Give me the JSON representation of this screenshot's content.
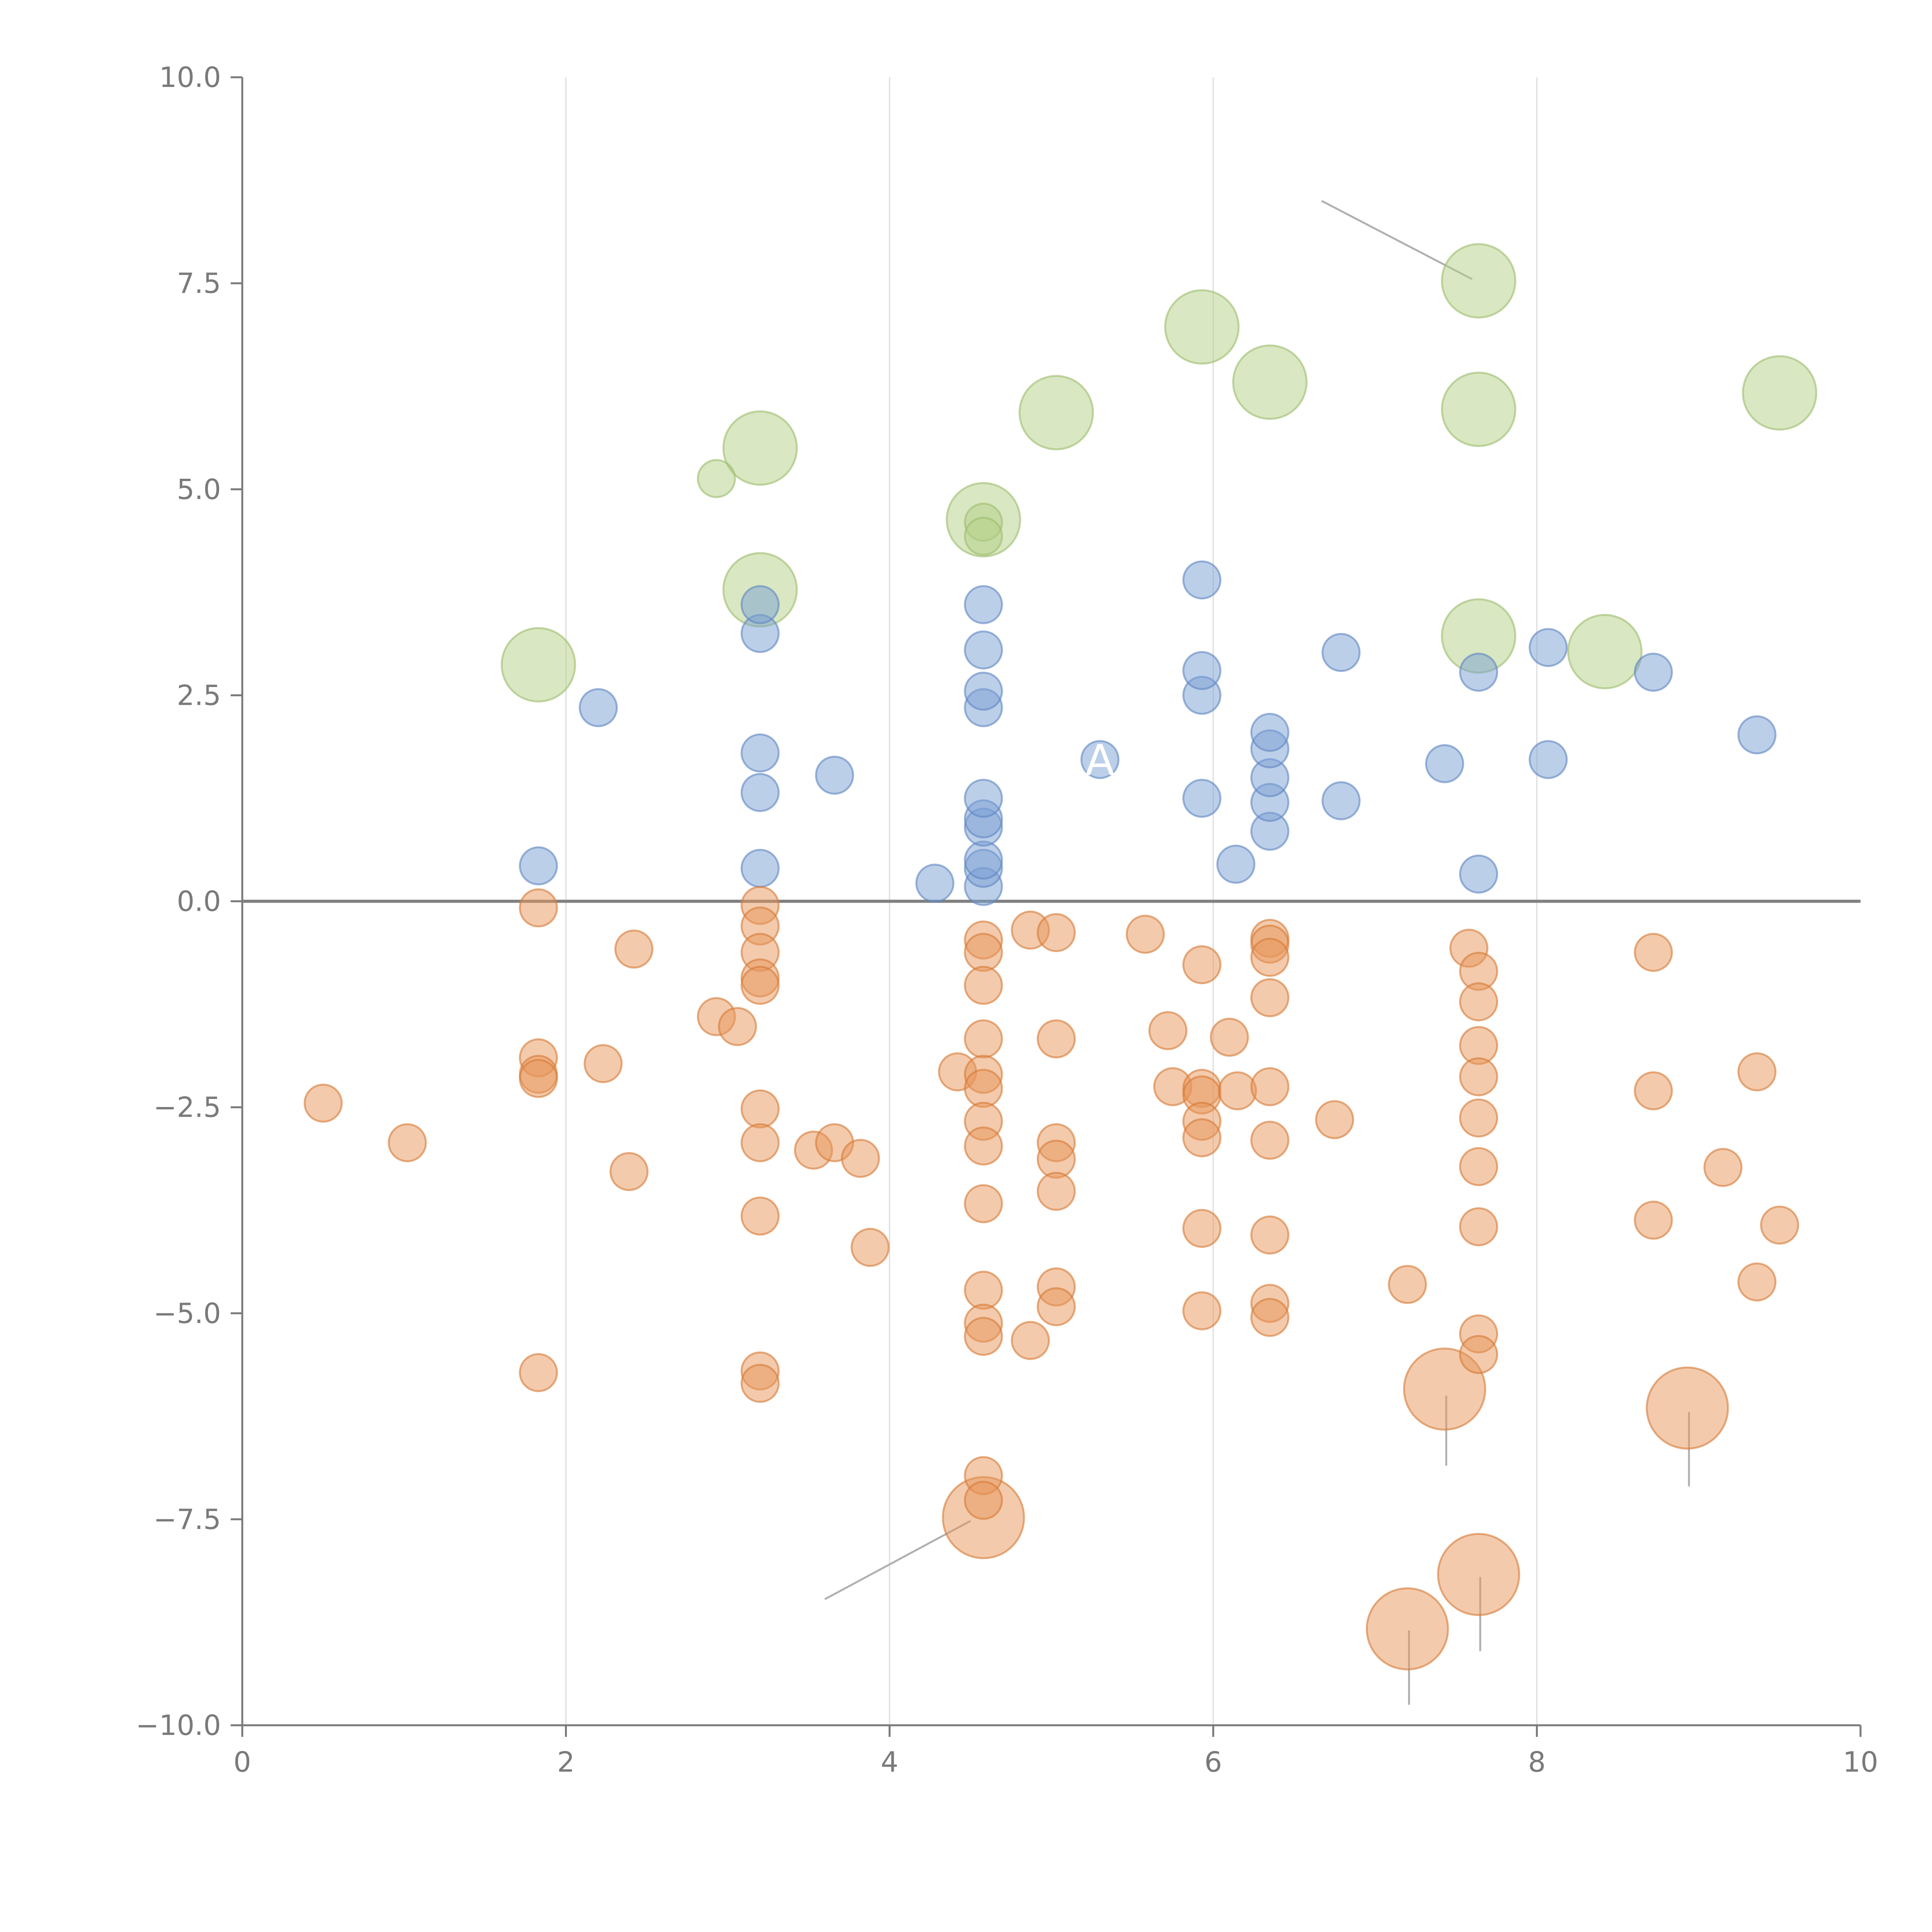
{
  "chart_data": {
    "type": "scatter",
    "subtype": "bubble",
    "title": "",
    "xlabel": "",
    "ylabel": "",
    "xlim": [
      0,
      10
    ],
    "ylim": [
      -10,
      10
    ],
    "x_ticks": [
      0,
      2,
      4,
      6,
      8,
      10
    ],
    "x_tick_labels": [
      "0",
      "2",
      "4",
      "6",
      "8",
      "10"
    ],
    "y_ticks": [
      -10,
      -7.5,
      -5,
      -2.5,
      0,
      2.5,
      5,
      7.5,
      10
    ],
    "y_tick_labels": [
      "−10.0",
      "−7.5",
      "−5.0",
      "−2.5",
      "0.0",
      "2.5",
      "5.0",
      "7.5",
      "10.0"
    ],
    "vertical_grid_at": [
      2,
      4,
      6,
      8
    ],
    "reference_line_y": 0,
    "colors": {
      "blue_fill": "#7a9fd4",
      "blue_stroke": "#5f86c2",
      "orange_fill": "#e8965a",
      "orange_stroke": "#d67a36",
      "green_fill": "#b3cf86",
      "green_stroke": "#9dbd6c",
      "grid": "#dcdcdc",
      "axis": "#7a7a7a",
      "zero_line": "#808080",
      "leader": "#b0b0b0"
    },
    "series": [
      {
        "name": "blue",
        "color": "blue",
        "points": [
          [
            1.83,
            0.43
          ],
          [
            2.2,
            2.35
          ],
          [
            3.2,
            0.4
          ],
          [
            3.2,
            1.32
          ],
          [
            3.2,
            1.8
          ],
          [
            3.2,
            3.25
          ],
          [
            3.2,
            3.6
          ],
          [
            3.66,
            1.53
          ],
          [
            4.28,
            0.22
          ],
          [
            4.58,
            0.18
          ],
          [
            4.58,
            0.4
          ],
          [
            4.58,
            0.5
          ],
          [
            4.58,
            0.9
          ],
          [
            4.58,
            1.0
          ],
          [
            4.58,
            1.25
          ],
          [
            4.58,
            2.35
          ],
          [
            4.58,
            2.55
          ],
          [
            4.58,
            3.05
          ],
          [
            4.58,
            3.6
          ],
          [
            5.3,
            1.72
          ],
          [
            5.93,
            1.25
          ],
          [
            5.93,
            2.5
          ],
          [
            5.93,
            2.8
          ],
          [
            5.93,
            3.9
          ],
          [
            6.14,
            0.45
          ],
          [
            6.35,
            0.85
          ],
          [
            6.35,
            1.2
          ],
          [
            6.35,
            1.5
          ],
          [
            6.35,
            1.85
          ],
          [
            6.35,
            2.05
          ],
          [
            6.79,
            1.22
          ],
          [
            6.79,
            3.02
          ],
          [
            7.43,
            1.67
          ],
          [
            7.64,
            0.33
          ],
          [
            7.64,
            2.78
          ],
          [
            8.07,
            1.72
          ],
          [
            8.07,
            3.08
          ],
          [
            8.72,
            2.78
          ],
          [
            9.36,
            2.02
          ]
        ]
      },
      {
        "name": "orange",
        "color": "orange",
        "points": [
          [
            0.5,
            -2.45
          ],
          [
            1.02,
            -2.93
          ],
          [
            1.83,
            -0.08
          ],
          [
            1.83,
            -1.9
          ],
          [
            1.83,
            -2.1
          ],
          [
            1.83,
            -2.15
          ],
          [
            1.83,
            -5.72
          ],
          [
            2.23,
            -1.97
          ],
          [
            2.39,
            -3.28
          ],
          [
            2.42,
            -0.58
          ],
          [
            2.93,
            -1.4
          ],
          [
            3.06,
            -1.52
          ],
          [
            3.2,
            -0.05
          ],
          [
            3.2,
            -0.3
          ],
          [
            3.2,
            -0.62
          ],
          [
            3.2,
            -0.93
          ],
          [
            3.2,
            -1.02
          ],
          [
            3.2,
            -2.52
          ],
          [
            3.2,
            -2.93
          ],
          [
            3.2,
            -3.82
          ],
          [
            3.2,
            -5.7
          ],
          [
            3.2,
            -5.85
          ],
          [
            3.53,
            -3.02
          ],
          [
            3.66,
            -2.93
          ],
          [
            3.82,
            -3.12
          ],
          [
            3.88,
            -4.2
          ],
          [
            4.42,
            -2.07
          ],
          [
            4.58,
            -0.47
          ],
          [
            4.58,
            -0.62
          ],
          [
            4.58,
            -1.02
          ],
          [
            4.58,
            -1.67
          ],
          [
            4.58,
            -2.1
          ],
          [
            4.58,
            -2.27
          ],
          [
            4.58,
            -2.67
          ],
          [
            4.58,
            -2.97
          ],
          [
            4.58,
            -3.67
          ],
          [
            4.58,
            -4.72
          ],
          [
            4.58,
            -5.12
          ],
          [
            4.58,
            -5.28
          ],
          [
            4.58,
            -6.97
          ],
          [
            4.58,
            -7.27
          ],
          [
            4.87,
            -0.35
          ],
          [
            4.87,
            -5.33
          ],
          [
            5.03,
            -0.38
          ],
          [
            5.03,
            -1.67
          ],
          [
            5.03,
            -2.93
          ],
          [
            5.03,
            -3.13
          ],
          [
            5.03,
            -3.52
          ],
          [
            5.03,
            -4.68
          ],
          [
            5.03,
            -4.92
          ],
          [
            5.58,
            -0.4
          ],
          [
            5.72,
            -1.57
          ],
          [
            5.75,
            -2.25
          ],
          [
            5.93,
            -0.77
          ],
          [
            5.93,
            -2.27
          ],
          [
            5.93,
            -2.35
          ],
          [
            5.93,
            -2.67
          ],
          [
            5.93,
            -2.87
          ],
          [
            5.93,
            -3.97
          ],
          [
            5.93,
            -4.97
          ],
          [
            6.1,
            -1.65
          ],
          [
            6.15,
            -2.3
          ],
          [
            6.35,
            -0.45
          ],
          [
            6.35,
            -0.52
          ],
          [
            6.35,
            -0.68
          ],
          [
            6.35,
            -1.17
          ],
          [
            6.35,
            -2.25
          ],
          [
            6.35,
            -2.9
          ],
          [
            6.35,
            -4.05
          ],
          [
            6.35,
            -4.88
          ],
          [
            6.35,
            -5.05
          ],
          [
            6.75,
            -2.65
          ],
          [
            7.2,
            -4.65
          ],
          [
            7.58,
            -0.57
          ],
          [
            7.64,
            -0.85
          ],
          [
            7.64,
            -1.22
          ],
          [
            7.64,
            -1.75
          ],
          [
            7.64,
            -2.13
          ],
          [
            7.64,
            -2.63
          ],
          [
            7.64,
            -3.22
          ],
          [
            7.64,
            -3.95
          ],
          [
            7.64,
            -5.25
          ],
          [
            7.64,
            -5.5
          ],
          [
            8.72,
            -0.62
          ],
          [
            8.72,
            -2.3
          ],
          [
            8.72,
            -3.87
          ],
          [
            9.15,
            -3.23
          ],
          [
            9.36,
            -2.07
          ],
          [
            9.36,
            -4.62
          ],
          [
            9.5,
            -3.93
          ]
        ]
      },
      {
        "name": "green",
        "color": "green",
        "points": [
          [
            2.93,
            5.13
          ],
          [
            4.58,
            4.6
          ],
          [
            4.58,
            4.43
          ]
        ]
      }
    ],
    "large_bubbles": [
      {
        "color": "green",
        "x": 1.83,
        "y": 2.87
      },
      {
        "color": "green",
        "x": 3.2,
        "y": 3.78
      },
      {
        "color": "green",
        "x": 3.2,
        "y": 5.5
      },
      {
        "color": "green",
        "x": 4.58,
        "y": 4.63
      },
      {
        "color": "green",
        "x": 5.03,
        "y": 5.93
      },
      {
        "color": "green",
        "x": 5.93,
        "y": 6.97
      },
      {
        "color": "green",
        "x": 6.35,
        "y": 6.3
      },
      {
        "color": "green",
        "x": 7.64,
        "y": 7.53
      },
      {
        "color": "green",
        "x": 7.64,
        "y": 5.97
      },
      {
        "color": "green",
        "x": 7.64,
        "y": 3.22
      },
      {
        "color": "green",
        "x": 8.42,
        "y": 3.03
      },
      {
        "color": "green",
        "x": 9.5,
        "y": 6.17
      },
      {
        "color": "orange",
        "x": 4.58,
        "y": -7.48
      },
      {
        "color": "orange",
        "x": 7.43,
        "y": -5.92
      },
      {
        "color": "orange",
        "x": 8.93,
        "y": -6.15
      },
      {
        "color": "orange",
        "x": 7.64,
        "y": -8.17
      },
      {
        "color": "orange",
        "x": 7.2,
        "y": -8.83
      }
    ],
    "annotations": [
      {
        "text": "A",
        "x": 5.3,
        "y": 1.72,
        "color": "#ffffff"
      }
    ]
  }
}
